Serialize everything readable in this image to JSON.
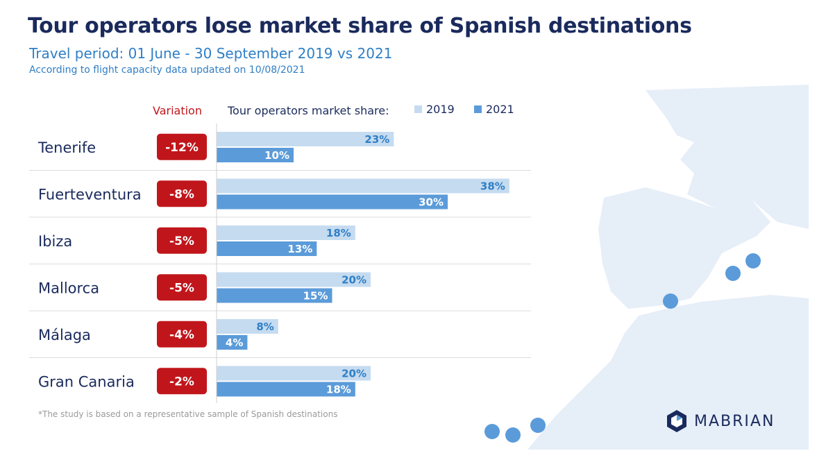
{
  "header": {
    "title": "Tour operators lose market share of Spanish destinations",
    "subtitle": "Travel period: 01 June - 30 September 2019 vs 2021",
    "note": "According  to flight capacity  data  updated on 10/08/2021"
  },
  "variation_header": "Variation",
  "share_label": "Tour operators market share:",
  "footnote": "*The study is based on a representative sample of Spanish destinations",
  "brand": "MABRIAN",
  "colors": {
    "title": "#1a2a5c",
    "accent": "#2f7fc6",
    "variation_badge": "#c0161b",
    "bar_2019": "#c5dbf0",
    "bar_2021": "#5b9bd9",
    "map": "#e6eef8",
    "dot": "#5b9bd9"
  },
  "chart_data": {
    "type": "bar",
    "orientation": "horizontal",
    "categories": [
      "Tenerife",
      "Fuerteventura",
      "Ibiza",
      "Mallorca",
      "Málaga",
      "Gran Canaria"
    ],
    "series": [
      {
        "name": "2019",
        "values": [
          23,
          38,
          18,
          20,
          8,
          20
        ]
      },
      {
        "name": "2021",
        "values": [
          10,
          30,
          13,
          15,
          4,
          18
        ]
      }
    ],
    "variation": [
      "-12%",
      "-8%",
      "-5%",
      "-5%",
      "-4%",
      "-2%"
    ],
    "value_suffix": "%",
    "xlim": [
      0,
      40
    ],
    "grid": false,
    "legend_placement": "top"
  }
}
